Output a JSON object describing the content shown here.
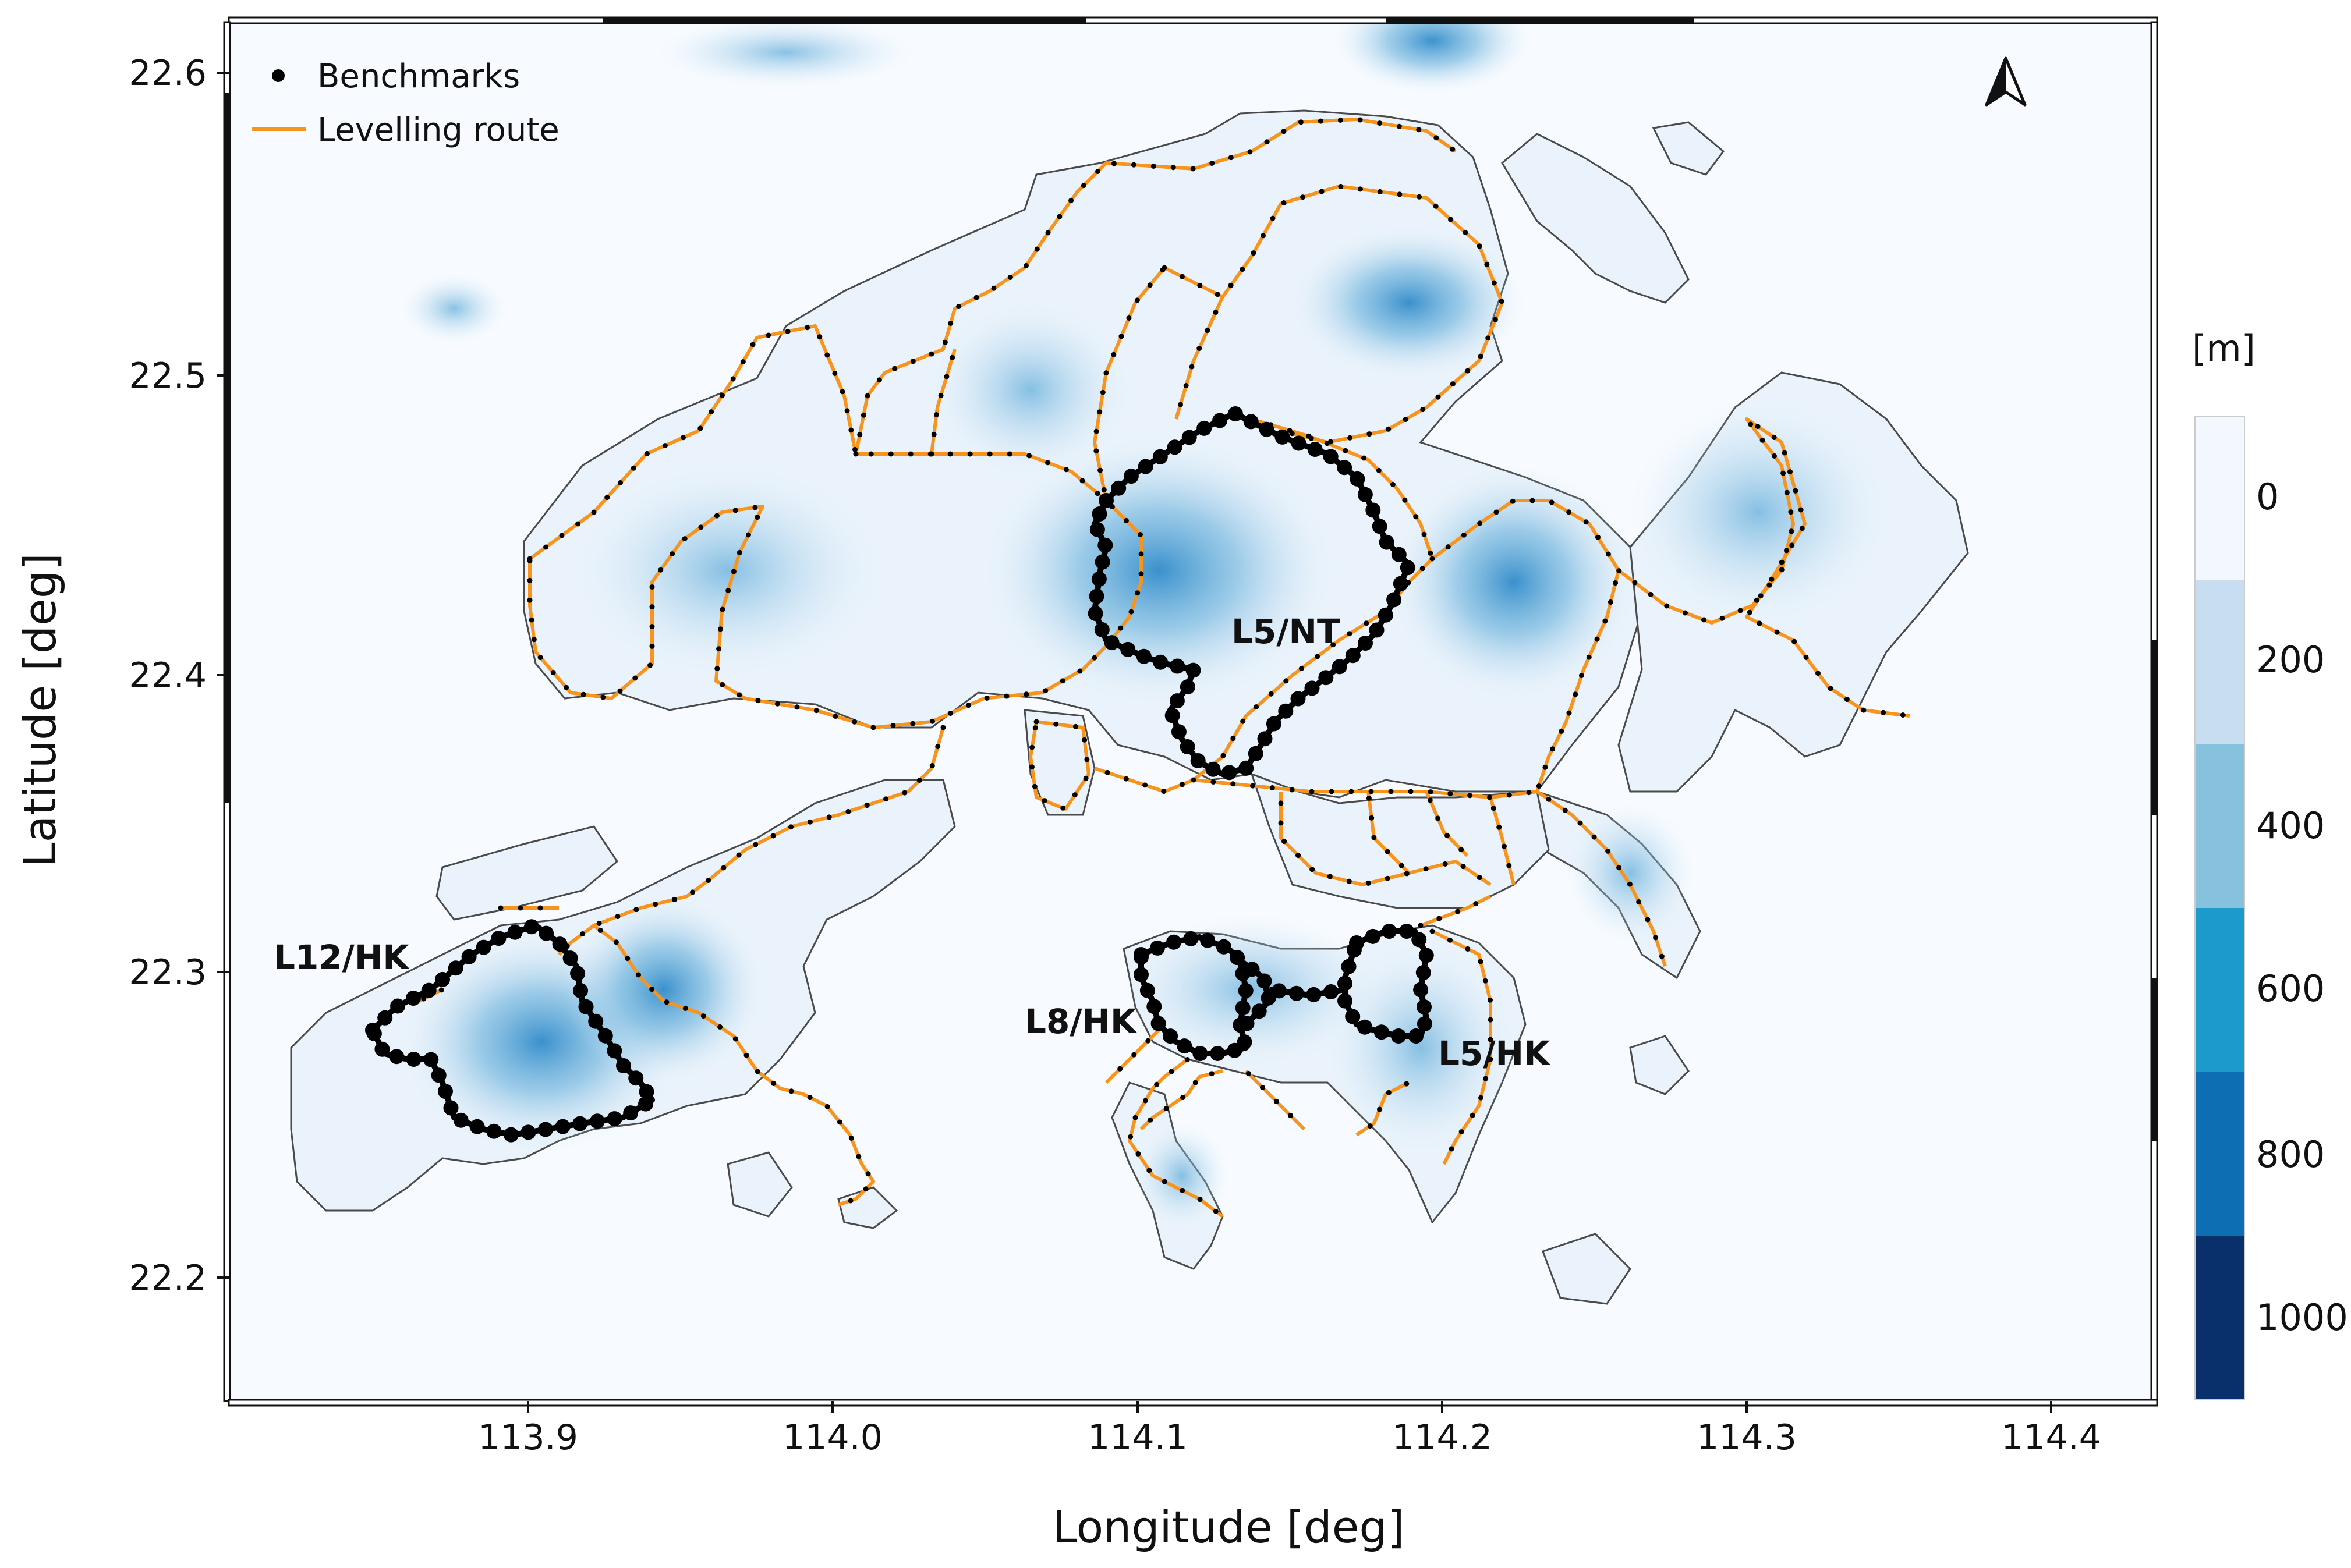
{
  "map": {
    "xlabel": "Longitude [deg]",
    "ylabel": "Latitude [deg]",
    "xlim": [
      113.82,
      114.45
    ],
    "ylim": [
      22.16,
      22.62
    ],
    "x_ticks": [
      "113.9",
      "114.0",
      "114.1",
      "114.2",
      "114.3",
      "114.4"
    ],
    "y_ticks": [
      "22.2",
      "22.3",
      "22.4",
      "22.5",
      "22.6"
    ],
    "north_arrow": "north-arrow-icon",
    "legend": {
      "benchmarks": "Benchmarks",
      "route": "Levelling route"
    },
    "loop_labels": {
      "l12": "L12/HK",
      "l8": "L8/HK",
      "l5hk": "L5/HK",
      "l5nt": "L5/NT"
    },
    "colorbar": {
      "unit": "[m]",
      "labels": [
        "0",
        "200",
        "400",
        "600",
        "800",
        "1000"
      ],
      "colors": [
        "#f3f8fe",
        "#c8ddf0",
        "#86c2dd",
        "#1b9acb",
        "#0d6eb4",
        "#0a306b"
      ]
    },
    "colors": {
      "route": "#f7941d",
      "benchmark": "#000000",
      "coastline": "#444444",
      "sea": "#f7fbff"
    }
  }
}
